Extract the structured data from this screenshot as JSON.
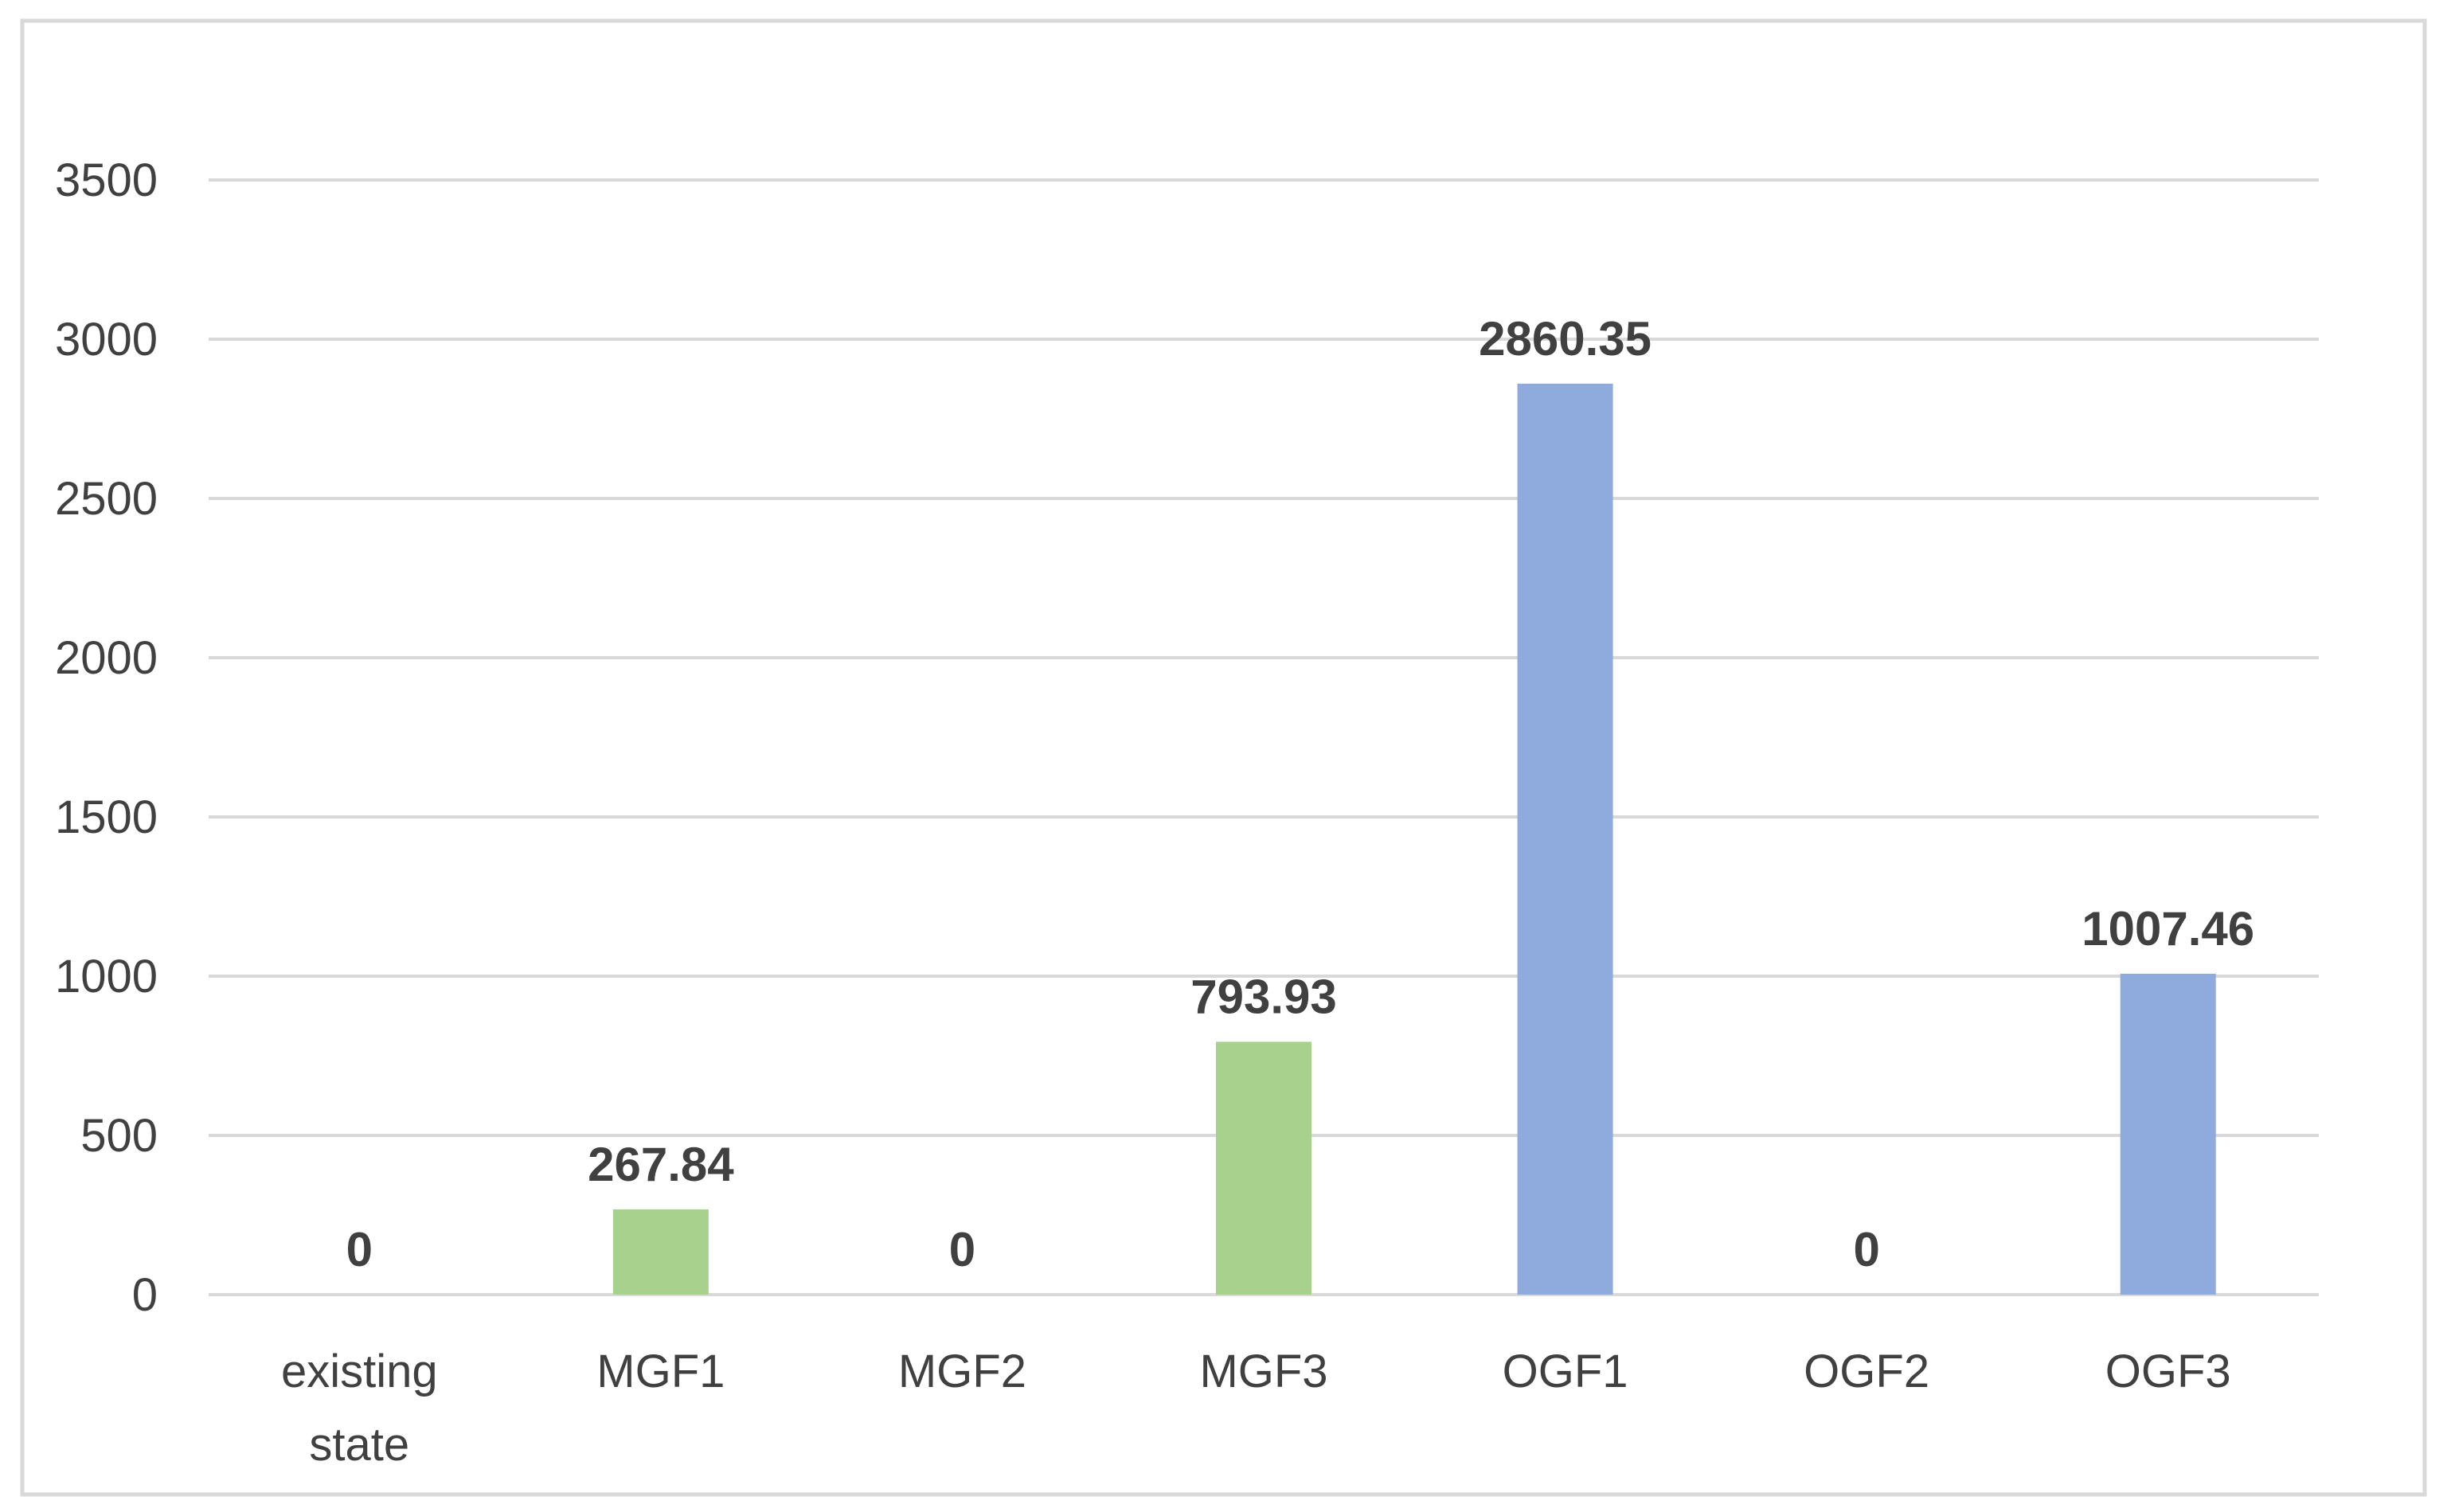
{
  "chart_data": {
    "type": "bar",
    "title": "",
    "xlabel": "",
    "ylabel": "",
    "categories": [
      [
        "existing",
        "state"
      ],
      [
        "MGF1"
      ],
      [
        "MGF2"
      ],
      [
        "MGF3"
      ],
      [
        "OGF1"
      ],
      [
        "OGF2"
      ],
      [
        "OGF3"
      ]
    ],
    "values": [
      0,
      267.84,
      0,
      793.93,
      2860.35,
      0,
      1007.46
    ],
    "data_labels": [
      "0",
      "267.84",
      "0",
      "793.93",
      "2860.35",
      "0",
      "1007.46"
    ],
    "bar_colors": [
      "#a9d18e",
      "#a9d18e",
      "#a9d18e",
      "#a9d18e",
      "#8faadc",
      "#8faadc",
      "#8faadc"
    ],
    "ylim": [
      0,
      3500
    ],
    "yticks": [
      0,
      500,
      1000,
      1500,
      2000,
      2500,
      3000,
      3500
    ],
    "ytick_labels": [
      "0",
      "500",
      "1000",
      "1500",
      "2000",
      "2500",
      "3000",
      "3500"
    ],
    "grid": true,
    "legend": "none"
  },
  "frame": {
    "border_color": "#d9d9d9"
  }
}
